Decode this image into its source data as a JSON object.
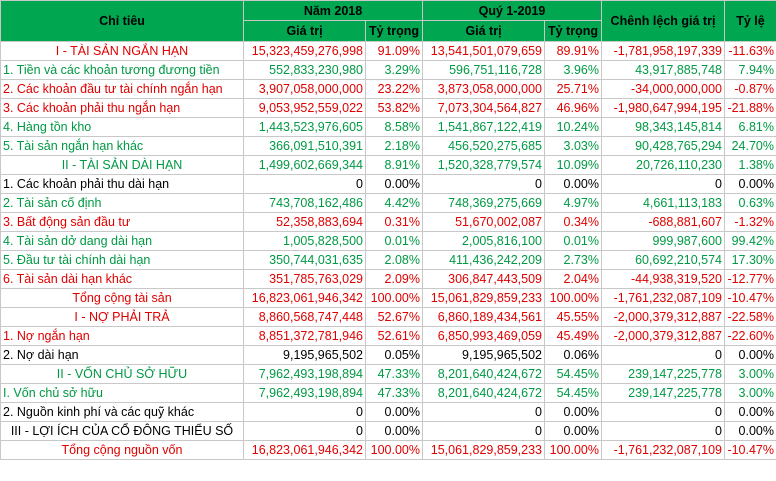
{
  "header": {
    "chi_tieu": "Chỉ tiêu",
    "year_label": "Năm 2018",
    "quarter_label": "Quý 1-2019",
    "chenh_lech": "Chênh lệch giá trị",
    "ty_le": "Tỷ lệ",
    "gia_tri_1": "Giá trị",
    "ty_trong_1": "Tỷ trọng",
    "gia_tri_2": "Giá trị",
    "ty_trong_2": "Tỷ trọng"
  },
  "rows": [
    {
      "label": "I - TÀI SẢN NGẮN HẠN",
      "v2018": "15,323,459,276,998",
      "p2018": "91.09%",
      "vq1": "13,541,501,079,659",
      "pq1": "89.91%",
      "diff": "-1,781,958,197,339",
      "rate": "-11.63%"
    },
    {
      "label": "1. Tiền và các khoản tương đương tiền",
      "v2018": "552,833,230,980",
      "p2018": "3.29%",
      "vq1": "596,751,116,728",
      "pq1": "3.96%",
      "diff": "43,917,885,748",
      "rate": "7.94%"
    },
    {
      "label": "2. Các khoản đầu tư tài chính ngắn hạn",
      "v2018": "3,907,058,000,000",
      "p2018": "23.22%",
      "vq1": "3,873,058,000,000",
      "pq1": "25.71%",
      "diff": "-34,000,000,000",
      "rate": "-0.87%"
    },
    {
      "label": "3. Các khoản phải thu ngắn hạn",
      "v2018": "9,053,952,559,022",
      "p2018": "53.82%",
      "vq1": "7,073,304,564,827",
      "pq1": "46.96%",
      "diff": "-1,980,647,994,195",
      "rate": "-21.88%"
    },
    {
      "label": "4. Hàng tồn kho",
      "v2018": "1,443,523,976,605",
      "p2018": "8.58%",
      "vq1": "1,541,867,122,419",
      "pq1": "10.24%",
      "diff": "98,343,145,814",
      "rate": "6.81%"
    },
    {
      "label": "5. Tài sản ngắn hạn khác",
      "v2018": "366,091,510,391",
      "p2018": "2.18%",
      "vq1": "456,520,275,685",
      "pq1": "3.03%",
      "diff": "90,428,765,294",
      "rate": "24.70%"
    },
    {
      "label": "II - TÀI SẢN DÀI HẠN",
      "v2018": "1,499,602,669,344",
      "p2018": "8.91%",
      "vq1": "1,520,328,779,574",
      "pq1": "10.09%",
      "diff": "20,726,110,230",
      "rate": "1.38%"
    },
    {
      "label": "1. Các khoản phải thu dài hạn",
      "v2018": "0",
      "p2018": "0.00%",
      "vq1": "0",
      "pq1": "0.00%",
      "diff": "0",
      "rate": "0.00%"
    },
    {
      "label": "2. Tài sản cố định",
      "v2018": "743,708,162,486",
      "p2018": "4.42%",
      "vq1": "748,369,275,669",
      "pq1": "4.97%",
      "diff": "4,661,113,183",
      "rate": "0.63%"
    },
    {
      "label": "3. Bất động sản đầu tư",
      "v2018": "52,358,883,694",
      "p2018": "0.31%",
      "vq1": "51,670,002,087",
      "pq1": "0.34%",
      "diff": "-688,881,607",
      "rate": "-1.32%"
    },
    {
      "label": "4. Tài sản dở dang dài hạn",
      "v2018": "1,005,828,500",
      "p2018": "0.01%",
      "vq1": "2,005,816,100",
      "pq1": "0.01%",
      "diff": "999,987,600",
      "rate": "99.42%"
    },
    {
      "label": "5. Đầu tư tài chính dài hạn",
      "v2018": "350,744,031,635",
      "p2018": "2.08%",
      "vq1": "411,436,242,209",
      "pq1": "2.73%",
      "diff": "60,692,210,574",
      "rate": "17.30%"
    },
    {
      "label": "6. Tài sản dài hạn khác",
      "v2018": "351,785,763,029",
      "p2018": "2.09%",
      "vq1": "306,847,443,509",
      "pq1": "2.04%",
      "diff": "-44,938,319,520",
      "rate": "-12.77%"
    },
    {
      "label": "Tổng cộng tài sản",
      "v2018": "16,823,061,946,342",
      "p2018": "100.00%",
      "vq1": "15,061,829,859,233",
      "pq1": "100.00%",
      "diff": "-1,761,232,087,109",
      "rate": "-10.47%"
    },
    {
      "label": "I - NỢ PHẢI TRẢ",
      "v2018": "8,860,568,747,448",
      "p2018": "52.67%",
      "vq1": "6,860,189,434,561",
      "pq1": "45.55%",
      "diff": "-2,000,379,312,887",
      "rate": "-22.58%"
    },
    {
      "label": "1. Nợ ngắn hạn",
      "v2018": "8,851,372,781,946",
      "p2018": "52.61%",
      "vq1": "6,850,993,469,059",
      "pq1": "45.49%",
      "diff": "-2,000,379,312,887",
      "rate": "-22.60%"
    },
    {
      "label": "2. Nợ dài hạn",
      "v2018": "9,195,965,502",
      "p2018": "0.05%",
      "vq1": "9,195,965,502",
      "pq1": "0.06%",
      "diff": "0",
      "rate": "0.00%"
    },
    {
      "label": "II - VỐN CHỦ SỞ HỮU",
      "v2018": "7,962,493,198,894",
      "p2018": "47.33%",
      "vq1": "8,201,640,424,672",
      "pq1": "54.45%",
      "diff": "239,147,225,778",
      "rate": "3.00%"
    },
    {
      "label": "I. Vốn chủ sở hữu",
      "v2018": "7,962,493,198,894",
      "p2018": "47.33%",
      "vq1": "8,201,640,424,672",
      "pq1": "54.45%",
      "diff": "239,147,225,778",
      "rate": "3.00%"
    },
    {
      "label": "2. Nguồn kinh phí và các quỹ khác",
      "v2018": "0",
      "p2018": "0.00%",
      "vq1": "0",
      "pq1": "0.00%",
      "diff": "0",
      "rate": "0.00%"
    },
    {
      "label": "III - LỢI ÍCH CỦA CỔ ĐÔNG THIỂU SỐ",
      "v2018": "0",
      "p2018": "0.00%",
      "vq1": "0",
      "pq1": "0.00%",
      "diff": "0",
      "rate": "0.00%"
    },
    {
      "label": "Tổng cộng nguồn vốn",
      "v2018": "16,823,061,946,342",
      "p2018": "100.00%",
      "vq1": "15,061,829,859,233",
      "pq1": "100.00%",
      "diff": "-1,761,232,087,109",
      "rate": "-10.47%"
    }
  ],
  "colors": {
    "header_bg": "#00a650",
    "red": "#e00000",
    "green": "#009944",
    "black": "#000000",
    "grid": "#c8c8c8"
  }
}
